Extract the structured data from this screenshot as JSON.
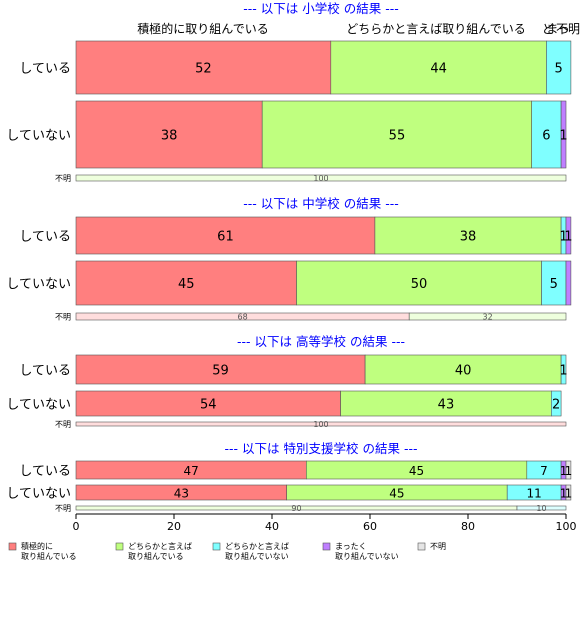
{
  "chart_data": {
    "type": "bar",
    "orientation": "horizontal",
    "stacked": true,
    "xlim": [
      0,
      100
    ],
    "xticks": [
      "0",
      "20",
      "40",
      "60",
      "80",
      "100"
    ],
    "top_labels": [
      "積極的に取り組んでいる",
      "どちらかと言えば取り組んでいる",
      "ど",
      "まっ",
      "不明"
    ],
    "colors": [
      "#FF7F7F",
      "#BFFF7F",
      "#7FFFFF",
      "#BF7FFF",
      "#E5E5E5"
    ],
    "legend": [
      {
        "line1": "積極的に",
        "line2": "取り組んでいる",
        "color": "#FF7F7F"
      },
      {
        "line1": "どちらかと言えば",
        "line2": "取り組んでいる",
        "color": "#BFFF7F"
      },
      {
        "line1": "どちらかと言えば",
        "line2": "取り組んでいない",
        "color": "#7FFFFF"
      },
      {
        "line1": "まったく",
        "line2": "取り組んでいない",
        "color": "#BF7FFF"
      },
      {
        "line1": "不明",
        "line2": "",
        "color": "#E5E5E5"
      }
    ],
    "groups": [
      {
        "title": "--- 以下は 小学校 の結果 ---",
        "rows": [
          {
            "label": "している",
            "values": [
              52,
              44,
              5,
              0,
              0
            ],
            "labels": [
              "52",
              "44",
              "5",
              "",
              ""
            ]
          },
          {
            "label": "していない",
            "values": [
              38,
              55,
              6,
              1,
              0
            ],
            "labels": [
              "38",
              "55",
              "6",
              "1",
              ""
            ]
          },
          {
            "label": "不明",
            "values": [
              0,
              100,
              0,
              0,
              0
            ],
            "labels": [
              "",
              "100",
              "",
              "",
              ""
            ]
          }
        ]
      },
      {
        "title": "--- 以下は 中学校 の結果 ---",
        "rows": [
          {
            "label": "している",
            "values": [
              61,
              38,
              1,
              1,
              0
            ],
            "labels": [
              "61",
              "38",
              "1",
              "1",
              ""
            ]
          },
          {
            "label": "していない",
            "values": [
              45,
              50,
              5,
              1,
              0
            ],
            "labels": [
              "45",
              "50",
              "5",
              "",
              ""
            ]
          },
          {
            "label": "不明",
            "values": [
              68,
              32,
              0,
              0,
              0
            ],
            "labels": [
              "68",
              "32",
              "",
              "",
              ""
            ]
          }
        ]
      },
      {
        "title": "--- 以下は 高等学校 の結果 ---",
        "rows": [
          {
            "label": "している",
            "values": [
              59,
              40,
              1,
              0,
              0
            ],
            "labels": [
              "59",
              "40",
              "1",
              "",
              ""
            ]
          },
          {
            "label": "していない",
            "values": [
              54,
              43,
              2,
              0,
              0
            ],
            "labels": [
              "54",
              "43",
              "2",
              "",
              ""
            ]
          },
          {
            "label": "不明",
            "values": [
              100,
              0,
              0,
              0,
              0
            ],
            "labels": [
              "100",
              "",
              "",
              "",
              ""
            ]
          }
        ]
      },
      {
        "title": "--- 以下は 特別支援学校 の結果 ---",
        "rows": [
          {
            "label": "している",
            "values": [
              47,
              45,
              7,
              1,
              1
            ],
            "labels": [
              "47",
              "45",
              "7",
              "1",
              "1"
            ]
          },
          {
            "label": "していない",
            "values": [
              43,
              45,
              11,
              1,
              1
            ],
            "labels": [
              "43",
              "45",
              "11",
              "1",
              "1"
            ]
          },
          {
            "label": "不明",
            "values": [
              0,
              90,
              10,
              0,
              0
            ],
            "labels": [
              "",
              "90",
              "10",
              "",
              ""
            ]
          }
        ]
      }
    ]
  }
}
